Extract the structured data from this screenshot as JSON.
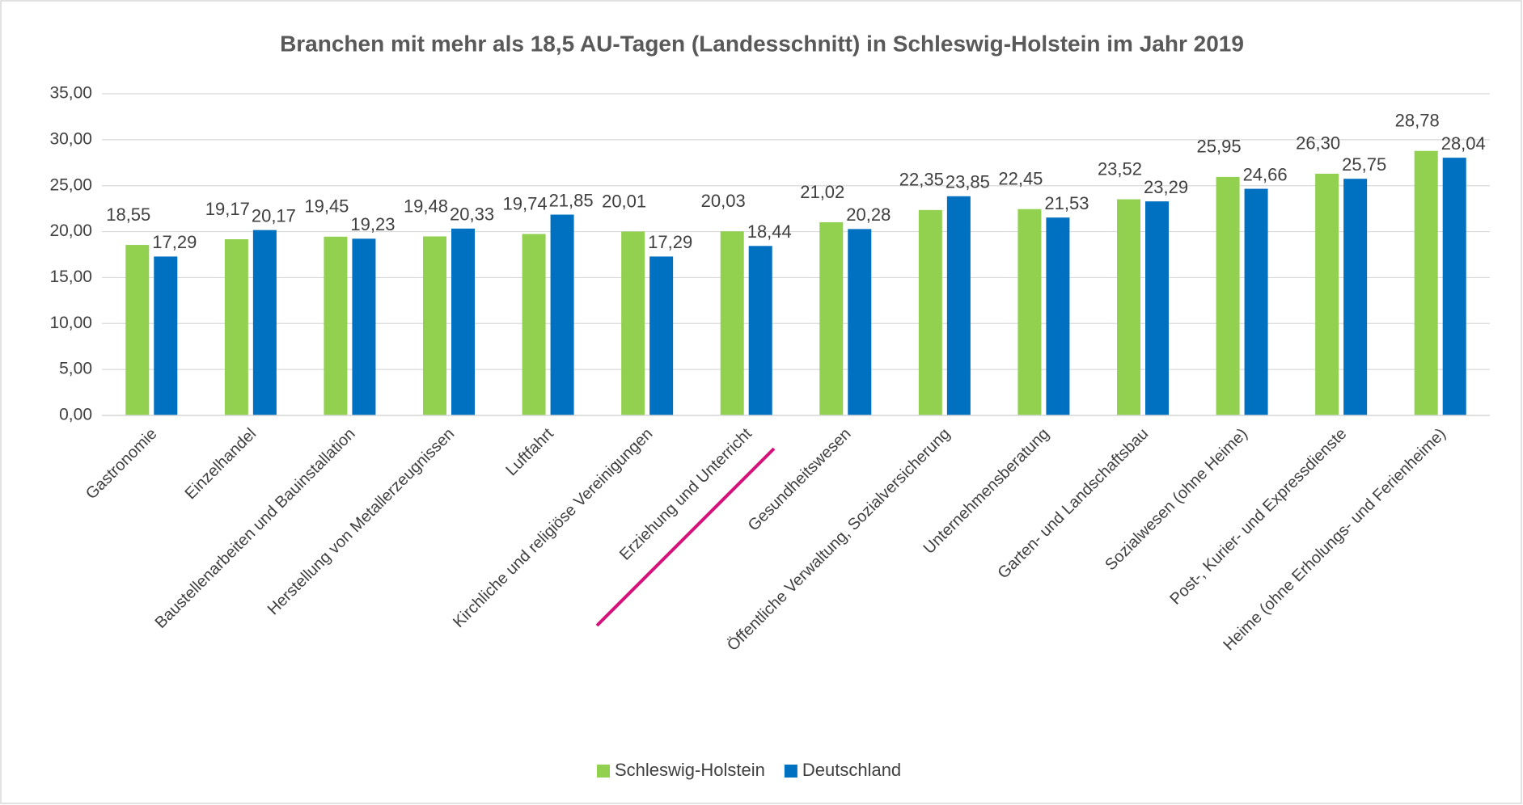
{
  "chart_data": {
    "type": "bar",
    "title": "Branchen mit mehr als 18,5 AU-Tagen (Landesschnitt) in Schleswig-Holstein im Jahr 2019",
    "categories": [
      "Gastronomie",
      "Einzelhandel",
      "Baustellenarbeiten und Bauinstallation",
      "Herstellung von Metallerzeugnissen",
      "Luftfahrt",
      "Kirchliche und religiöse Vereinigungen",
      "Erziehung und Unterricht",
      "Gesundheitswesen",
      "Öffentliche Verwaltung, Sozialversicherung",
      "Unternehmensberatung",
      "Garten- und Landschaftsbau",
      "Sozialwesen (ohne Heime)",
      "Post-, Kurier- und Expressdienste",
      "Heime (ohne Erholungs- und Ferienheime)"
    ],
    "series": [
      {
        "name": "Schleswig-Holstein",
        "color": "#92d050",
        "values": [
          18.55,
          19.17,
          19.45,
          19.48,
          19.74,
          20.01,
          20.03,
          21.02,
          22.35,
          22.45,
          23.52,
          25.95,
          26.3,
          28.78
        ],
        "value_labels": [
          "18,55",
          "19,17",
          "19,45",
          "19,48",
          "19,74",
          "20,01",
          "20,03",
          "21,02",
          "22,35",
          "22,45",
          "23,52",
          "25,95",
          "26,30",
          "28,78"
        ]
      },
      {
        "name": "Deutschland",
        "color": "#0070c0",
        "values": [
          17.29,
          20.17,
          19.23,
          20.33,
          21.85,
          17.29,
          18.44,
          20.28,
          23.85,
          21.53,
          23.29,
          24.66,
          25.75,
          28.04
        ],
        "value_labels": [
          "17,29",
          "20,17",
          "19,23",
          "20,33",
          "21,85",
          "17,29",
          "18,44",
          "20,28",
          "23,85",
          "21,53",
          "23,29",
          "24,66",
          "25,75",
          "28,04"
        ]
      }
    ],
    "ylim": [
      0,
      35
    ],
    "yticks": [
      {
        "value": 0,
        "label": "0,00"
      },
      {
        "value": 5,
        "label": "5,00"
      },
      {
        "value": 10,
        "label": "10,00"
      },
      {
        "value": 15,
        "label": "15,00"
      },
      {
        "value": 20,
        "label": "20,00"
      },
      {
        "value": 25,
        "label": "25,00"
      },
      {
        "value": 30,
        "label": "30,00"
      },
      {
        "value": 35,
        "label": "35,00"
      }
    ],
    "grid": true,
    "legend": "bottom"
  }
}
